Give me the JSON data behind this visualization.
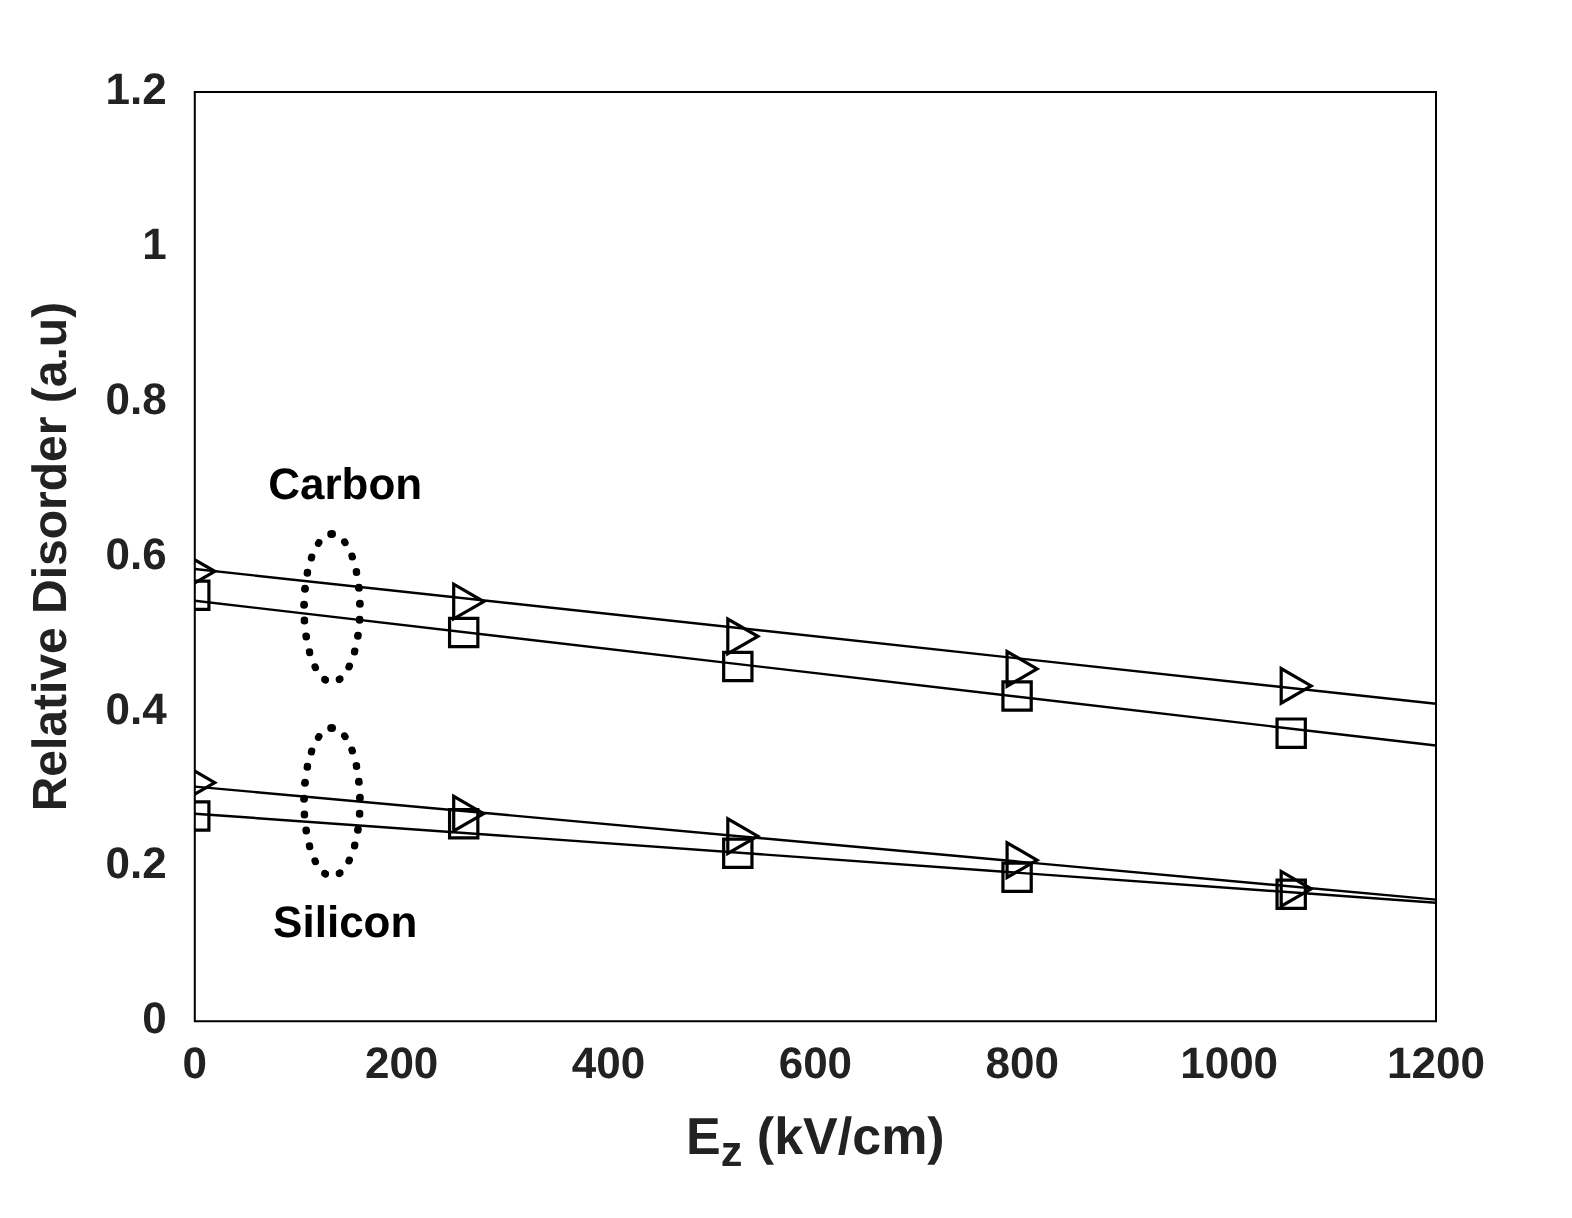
{
  "chart_data": {
    "type": "scatter",
    "xlabel": "E$_{z}$ (kV/cm)",
    "ylabel": "Relative Disorder (a.u)",
    "xlim": [
      0,
      1200
    ],
    "xticks": [
      0,
      200,
      400,
      600,
      800,
      1000,
      1200
    ],
    "ylim": [
      0,
      1.2
    ],
    "yticks": [
      0,
      0.2,
      0.4,
      0.6,
      0.8,
      {
        "value": 1,
        "label": "1"
      },
      1.2
    ],
    "grid": false,
    "series": [
      {
        "marker": "triangle",
        "color": "#000000",
        "x": [
          0,
          260,
          525,
          795,
          1060
        ],
        "values": [
          0.581,
          0.542,
          0.497,
          0.455,
          0.433
        ]
      },
      {
        "marker": "square",
        "color": "#000000",
        "x": [
          0,
          260,
          525,
          795,
          1060
        ],
        "values": [
          0.55,
          0.502,
          0.458,
          0.42,
          0.372
        ]
      },
      {
        "marker": "triangle",
        "color": "#000000",
        "x": [
          0,
          260,
          525,
          795,
          1060
        ],
        "values": [
          0.308,
          0.268,
          0.239,
          0.208,
          0.171
        ]
      },
      {
        "marker": "square",
        "color": "#000000",
        "x": [
          0,
          260,
          525,
          795,
          1060
        ],
        "values": [
          0.265,
          0.255,
          0.217,
          0.186,
          0.164
        ]
      },
      {
        "type": "line",
        "marker": "none",
        "color": "#000000",
        "x": [
          0,
          1200
        ],
        "values": [
          0.584,
          0.41
        ]
      },
      {
        "type": "line",
        "marker": "none",
        "color": "#000000",
        "x": [
          0,
          1200
        ],
        "values": [
          0.543,
          0.356
        ]
      },
      {
        "type": "line",
        "marker": "none",
        "color": "#000000",
        "x": [
          0,
          1200
        ],
        "values": [
          0.303,
          0.157
        ]
      },
      {
        "type": "line",
        "marker": "none",
        "color": "#000000",
        "x": [
          0,
          1200
        ],
        "values": [
          0.268,
          0.153
        ]
      }
    ],
    "annotations": [
      "Carbon",
      "Silicon"
    ]
  }
}
